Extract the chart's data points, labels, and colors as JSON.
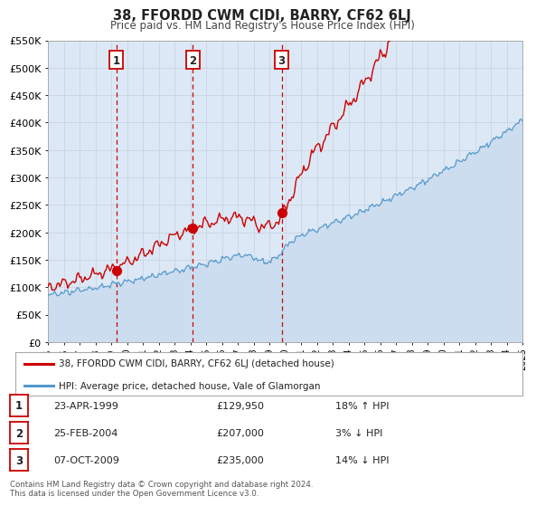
{
  "title": "38, FFORDD CWM CIDI, BARRY, CF62 6LJ",
  "subtitle": "Price paid vs. HM Land Registry's House Price Index (HPI)",
  "ylim": [
    0,
    550000
  ],
  "yticks": [
    0,
    50000,
    100000,
    150000,
    200000,
    250000,
    300000,
    350000,
    400000,
    450000,
    500000,
    550000
  ],
  "ytick_labels": [
    "£0",
    "£50K",
    "£100K",
    "£150K",
    "£200K",
    "£250K",
    "£300K",
    "£350K",
    "£400K",
    "£450K",
    "£500K",
    "£550K"
  ],
  "x_start_year": 1995,
  "x_end_year": 2025,
  "grid_color": "#c8d4e0",
  "background_color": "#ffffff",
  "plot_bg_color": "#dce8f5",
  "red_line_color": "#cc0000",
  "blue_line_color": "#5599cc",
  "blue_fill_color": "#ccddf0",
  "sale_points": [
    {
      "year": 1999.31,
      "price": 129950,
      "label": "1"
    },
    {
      "year": 2004.15,
      "price": 207000,
      "label": "2"
    },
    {
      "year": 2009.77,
      "price": 235000,
      "label": "3"
    }
  ],
  "vline_years": [
    1999.31,
    2004.15,
    2009.77
  ],
  "legend_red_label": "38, FFORDD CWM CIDI, BARRY, CF62 6LJ (detached house)",
  "legend_blue_label": "HPI: Average price, detached house, Vale of Glamorgan",
  "table_rows": [
    {
      "num": "1",
      "date": "23-APR-1999",
      "price": "£129,950",
      "hpi": "18% ↑ HPI"
    },
    {
      "num": "2",
      "date": "25-FEB-2004",
      "price": "£207,000",
      "hpi": "3% ↓ HPI"
    },
    {
      "num": "3",
      "date": "07-OCT-2009",
      "price": "£235,000",
      "hpi": "14% ↓ HPI"
    }
  ],
  "footer_line1": "Contains HM Land Registry data © Crown copyright and database right 2024.",
  "footer_line2": "This data is licensed under the Open Government Licence v3.0."
}
